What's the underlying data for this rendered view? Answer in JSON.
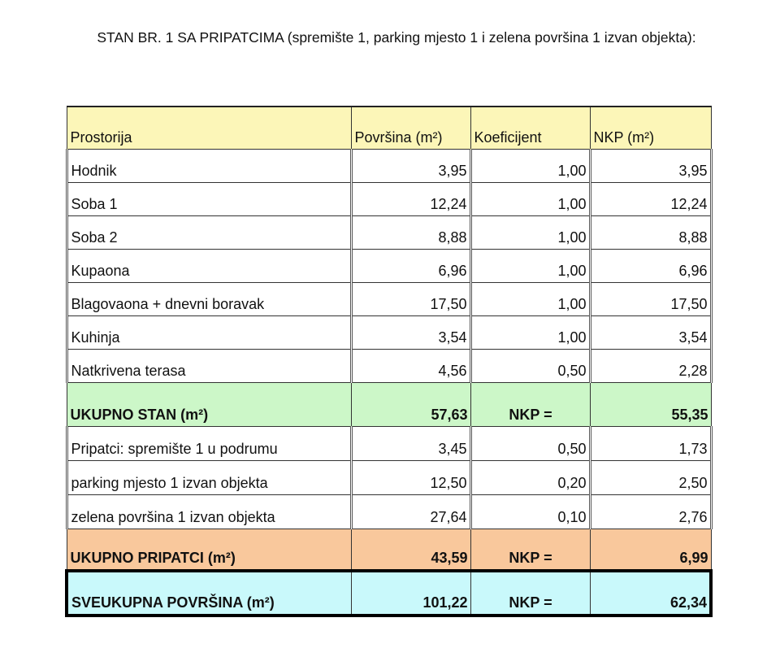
{
  "title": "STAN BR. 1 SA PRIPATCIMA (spremište 1, parking mjesto 1 i zelena površina 1 izvan objekta):",
  "header": [
    "Prostorija",
    "Površina (m²)",
    "Koeficijent",
    "NKP (m²)"
  ],
  "rooms": [
    [
      "Hodnik",
      "3,95",
      "1,00",
      "3,95"
    ],
    [
      "Soba 1",
      "12,24",
      "1,00",
      "12,24"
    ],
    [
      "Soba 2",
      "8,88",
      "1,00",
      "8,88"
    ],
    [
      "Kupaona",
      "6,96",
      "1,00",
      "6,96"
    ],
    [
      "Blagovaona + dnevni boravak",
      "17,50",
      "1,00",
      "17,50"
    ],
    [
      "Kuhinja",
      "3,54",
      "1,00",
      "3,54"
    ],
    [
      "Natkrivena terasa",
      "4,56",
      "0,50",
      "2,28"
    ]
  ],
  "total_stan": [
    "UKUPNO STAN (m²)",
    "57,63",
    "NKP =",
    "55,35"
  ],
  "extras": [
    [
      "Pripatci: spremište 1 u podrumu",
      "3,45",
      "0,50",
      "1,73"
    ],
    [
      "parking mjesto 1 izvan objekta",
      "12,50",
      "0,20",
      "2,50"
    ],
    [
      "zelena površina 1 izvan objekta",
      "27,64",
      "0,10",
      "2,76"
    ]
  ],
  "total_pripatci": [
    "UKUPNO PRIPATCI (m²)",
    "43,59",
    "NKP =",
    "6,99"
  ],
  "grand_total": [
    "SVEUKUPNA POVRŠINA (m²)",
    "101,22",
    "NKP =",
    "62,34"
  ],
  "colors": {
    "header": "#fcf6b8",
    "total_stan": "#ccf7c8",
    "total_pripatci": "#f9c89c",
    "grand_total": "#c9f9fb"
  }
}
